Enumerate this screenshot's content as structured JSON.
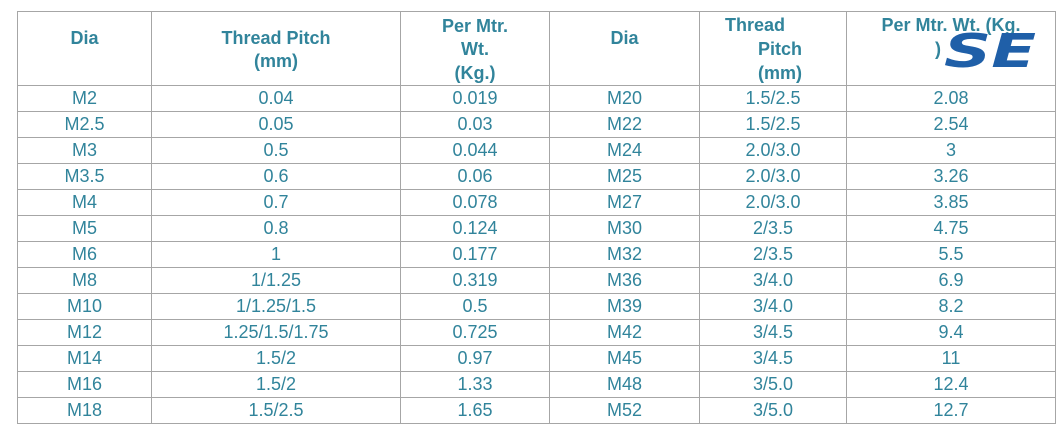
{
  "headers": {
    "left": {
      "dia": "Dia",
      "pitch_l1": "Thread Pitch",
      "pitch_l2": "(mm)",
      "wt_l1": "Per Mtr.",
      "wt_l2": "Wt.",
      "wt_l3": "(Kg.)"
    },
    "right": {
      "dia": "Dia",
      "pitch_l1": "Thread",
      "pitch_l2": "Pitch",
      "pitch_l3": "(mm)",
      "wt_l1": "Per Mtr. Wt. (Kg.",
      "wt_l2": ")"
    }
  },
  "rows": [
    {
      "dia": "M2",
      "pitch": "0.04",
      "wt": "0.019",
      "dia2": "M20",
      "pitch2": "1.5/2.5",
      "wt2": "2.08"
    },
    {
      "dia": "M2.5",
      "pitch": "0.05",
      "wt": "0.03",
      "dia2": "M22",
      "pitch2": "1.5/2.5",
      "wt2": "2.54"
    },
    {
      "dia": "M3",
      "pitch": "0.5",
      "wt": "0.044",
      "dia2": "M24",
      "pitch2": "2.0/3.0",
      "wt2": "3"
    },
    {
      "dia": "M3.5",
      "pitch": "0.6",
      "wt": "0.06",
      "dia2": "M25",
      "pitch2": "2.0/3.0",
      "wt2": "3.26"
    },
    {
      "dia": "M4",
      "pitch": "0.7",
      "wt": "0.078",
      "dia2": "M27",
      "pitch2": "2.0/3.0",
      "wt2": "3.85"
    },
    {
      "dia": "M5",
      "pitch": "0.8",
      "wt": "0.124",
      "dia2": "M30",
      "pitch2": "2/3.5",
      "wt2": "4.75"
    },
    {
      "dia": "M6",
      "pitch": "1",
      "wt": "0.177",
      "dia2": "M32",
      "pitch2": "2/3.5",
      "wt2": "5.5"
    },
    {
      "dia": "M8",
      "pitch": "1/1.25",
      "wt": "0.319",
      "dia2": "M36",
      "pitch2": "3/4.0",
      "wt2": "6.9"
    },
    {
      "dia": "M10",
      "pitch": "1/1.25/1.5",
      "wt": "0.5",
      "dia2": "M39",
      "pitch2": "3/4.0",
      "wt2": "8.2"
    },
    {
      "dia": "M12",
      "pitch": "1.25/1.5/1.75",
      "wt": "0.725",
      "dia2": "M42",
      "pitch2": "3/4.5",
      "wt2": "9.4"
    },
    {
      "dia": "M14",
      "pitch": "1.5/2",
      "wt": "0.97",
      "dia2": "M45",
      "pitch2": "3/4.5",
      "wt2": "11"
    },
    {
      "dia": "M16",
      "pitch": "1.5/2",
      "wt": "1.33",
      "dia2": "M48",
      "pitch2": "3/5.0",
      "wt2": "12.4"
    },
    {
      "dia": "M18",
      "pitch": "1.5/2.5",
      "wt": "1.65",
      "dia2": "M52",
      "pitch2": "3/5.0",
      "wt2": "12.7"
    }
  ],
  "logo": {
    "text": "SE",
    "color": "#1f5fa8"
  },
  "colors": {
    "text": "#31849b",
    "border": "#a6a6a6"
  }
}
